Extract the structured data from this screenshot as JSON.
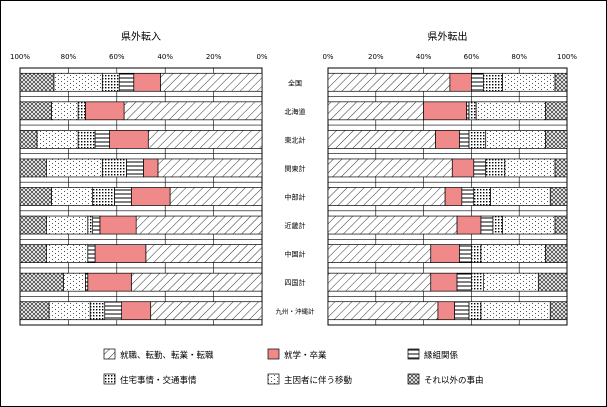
{
  "chart_data": {
    "type": "bar",
    "stacked": true,
    "orientation": "horizontal",
    "categories": [
      "全国",
      "北海道",
      "東北計",
      "関東計",
      "中部計",
      "近畿計",
      "中国計",
      "四国計",
      "九州・沖縄計"
    ],
    "panels": [
      {
        "title": "県外転入",
        "direction": "right-to-left",
        "ticks": [
          "100%",
          "80%",
          "60%",
          "40%",
          "20%",
          "0%"
        ],
        "xlim": [
          0,
          100
        ],
        "series": [
          {
            "name": "就職、転勤、転業・転職",
            "values": [
              42,
              57,
              47,
              43,
              38,
              52,
              48,
              54,
              46
            ]
          },
          {
            "name": "就学・卒業",
            "values": [
              11,
              16,
              16,
              6,
              16,
              15,
              21,
              18,
              12
            ]
          },
          {
            "name": "縁組関係",
            "values": [
              6,
              0,
              6,
              7,
              7,
              3,
              3,
              1,
              7
            ]
          },
          {
            "name": "住宅事情・交通事情",
            "values": [
              7,
              3,
              7,
              10,
              9,
              2,
              0,
              0,
              6
            ]
          },
          {
            "name": "主因者に伴う移動",
            "values": [
              20,
              11,
              17,
              23,
              17,
              17,
              17,
              9,
              17
            ]
          },
          {
            "name": "それ以外の事由",
            "values": [
              14,
              13,
              7,
              11,
              13,
              11,
              11,
              18,
              12
            ]
          }
        ]
      },
      {
        "title": "県外転出",
        "direction": "left-to-right",
        "ticks": [
          "0%",
          "20%",
          "40%",
          "60%",
          "80%",
          "100%"
        ],
        "xlim": [
          0,
          100
        ],
        "series": [
          {
            "name": "就職、転勤、転業・転職",
            "values": [
              51,
              40,
              45,
              52,
              49,
              54,
              43,
              43,
              46
            ]
          },
          {
            "name": "就学・卒業",
            "values": [
              9,
              18,
              10,
              9,
              7,
              10,
              12,
              11,
              7
            ]
          },
          {
            "name": "縁組関係",
            "values": [
              5,
              1,
              4,
              5,
              5,
              5,
              5,
              6,
              6
            ]
          },
          {
            "name": "住宅事情・交通事情",
            "values": [
              8,
              3,
              7,
              8,
              7,
              4,
              4,
              5,
              5
            ]
          },
          {
            "name": "主因者に伴う移動",
            "values": [
              22,
              29,
              25,
              21,
              25,
              22,
              27,
              23,
              29
            ]
          },
          {
            "name": "それ以外の事由",
            "values": [
              5,
              9,
              9,
              5,
              7,
              5,
              9,
              12,
              7
            ]
          }
        ]
      }
    ],
    "legend": {
      "position": "bottom",
      "items": [
        {
          "name": "就職、転勤、転業・転職",
          "pattern": "diagonal"
        },
        {
          "name": "就学・卒業",
          "pattern": "solid-pink",
          "color": "#f08a8a"
        },
        {
          "name": "縁組関係",
          "pattern": "horizontal-lines"
        },
        {
          "name": "住宅事情・交通事情",
          "pattern": "dots"
        },
        {
          "name": "主因者に伴う移動",
          "pattern": "sparse-dots"
        },
        {
          "name": "それ以外の事由",
          "pattern": "crosshatch"
        }
      ]
    }
  }
}
